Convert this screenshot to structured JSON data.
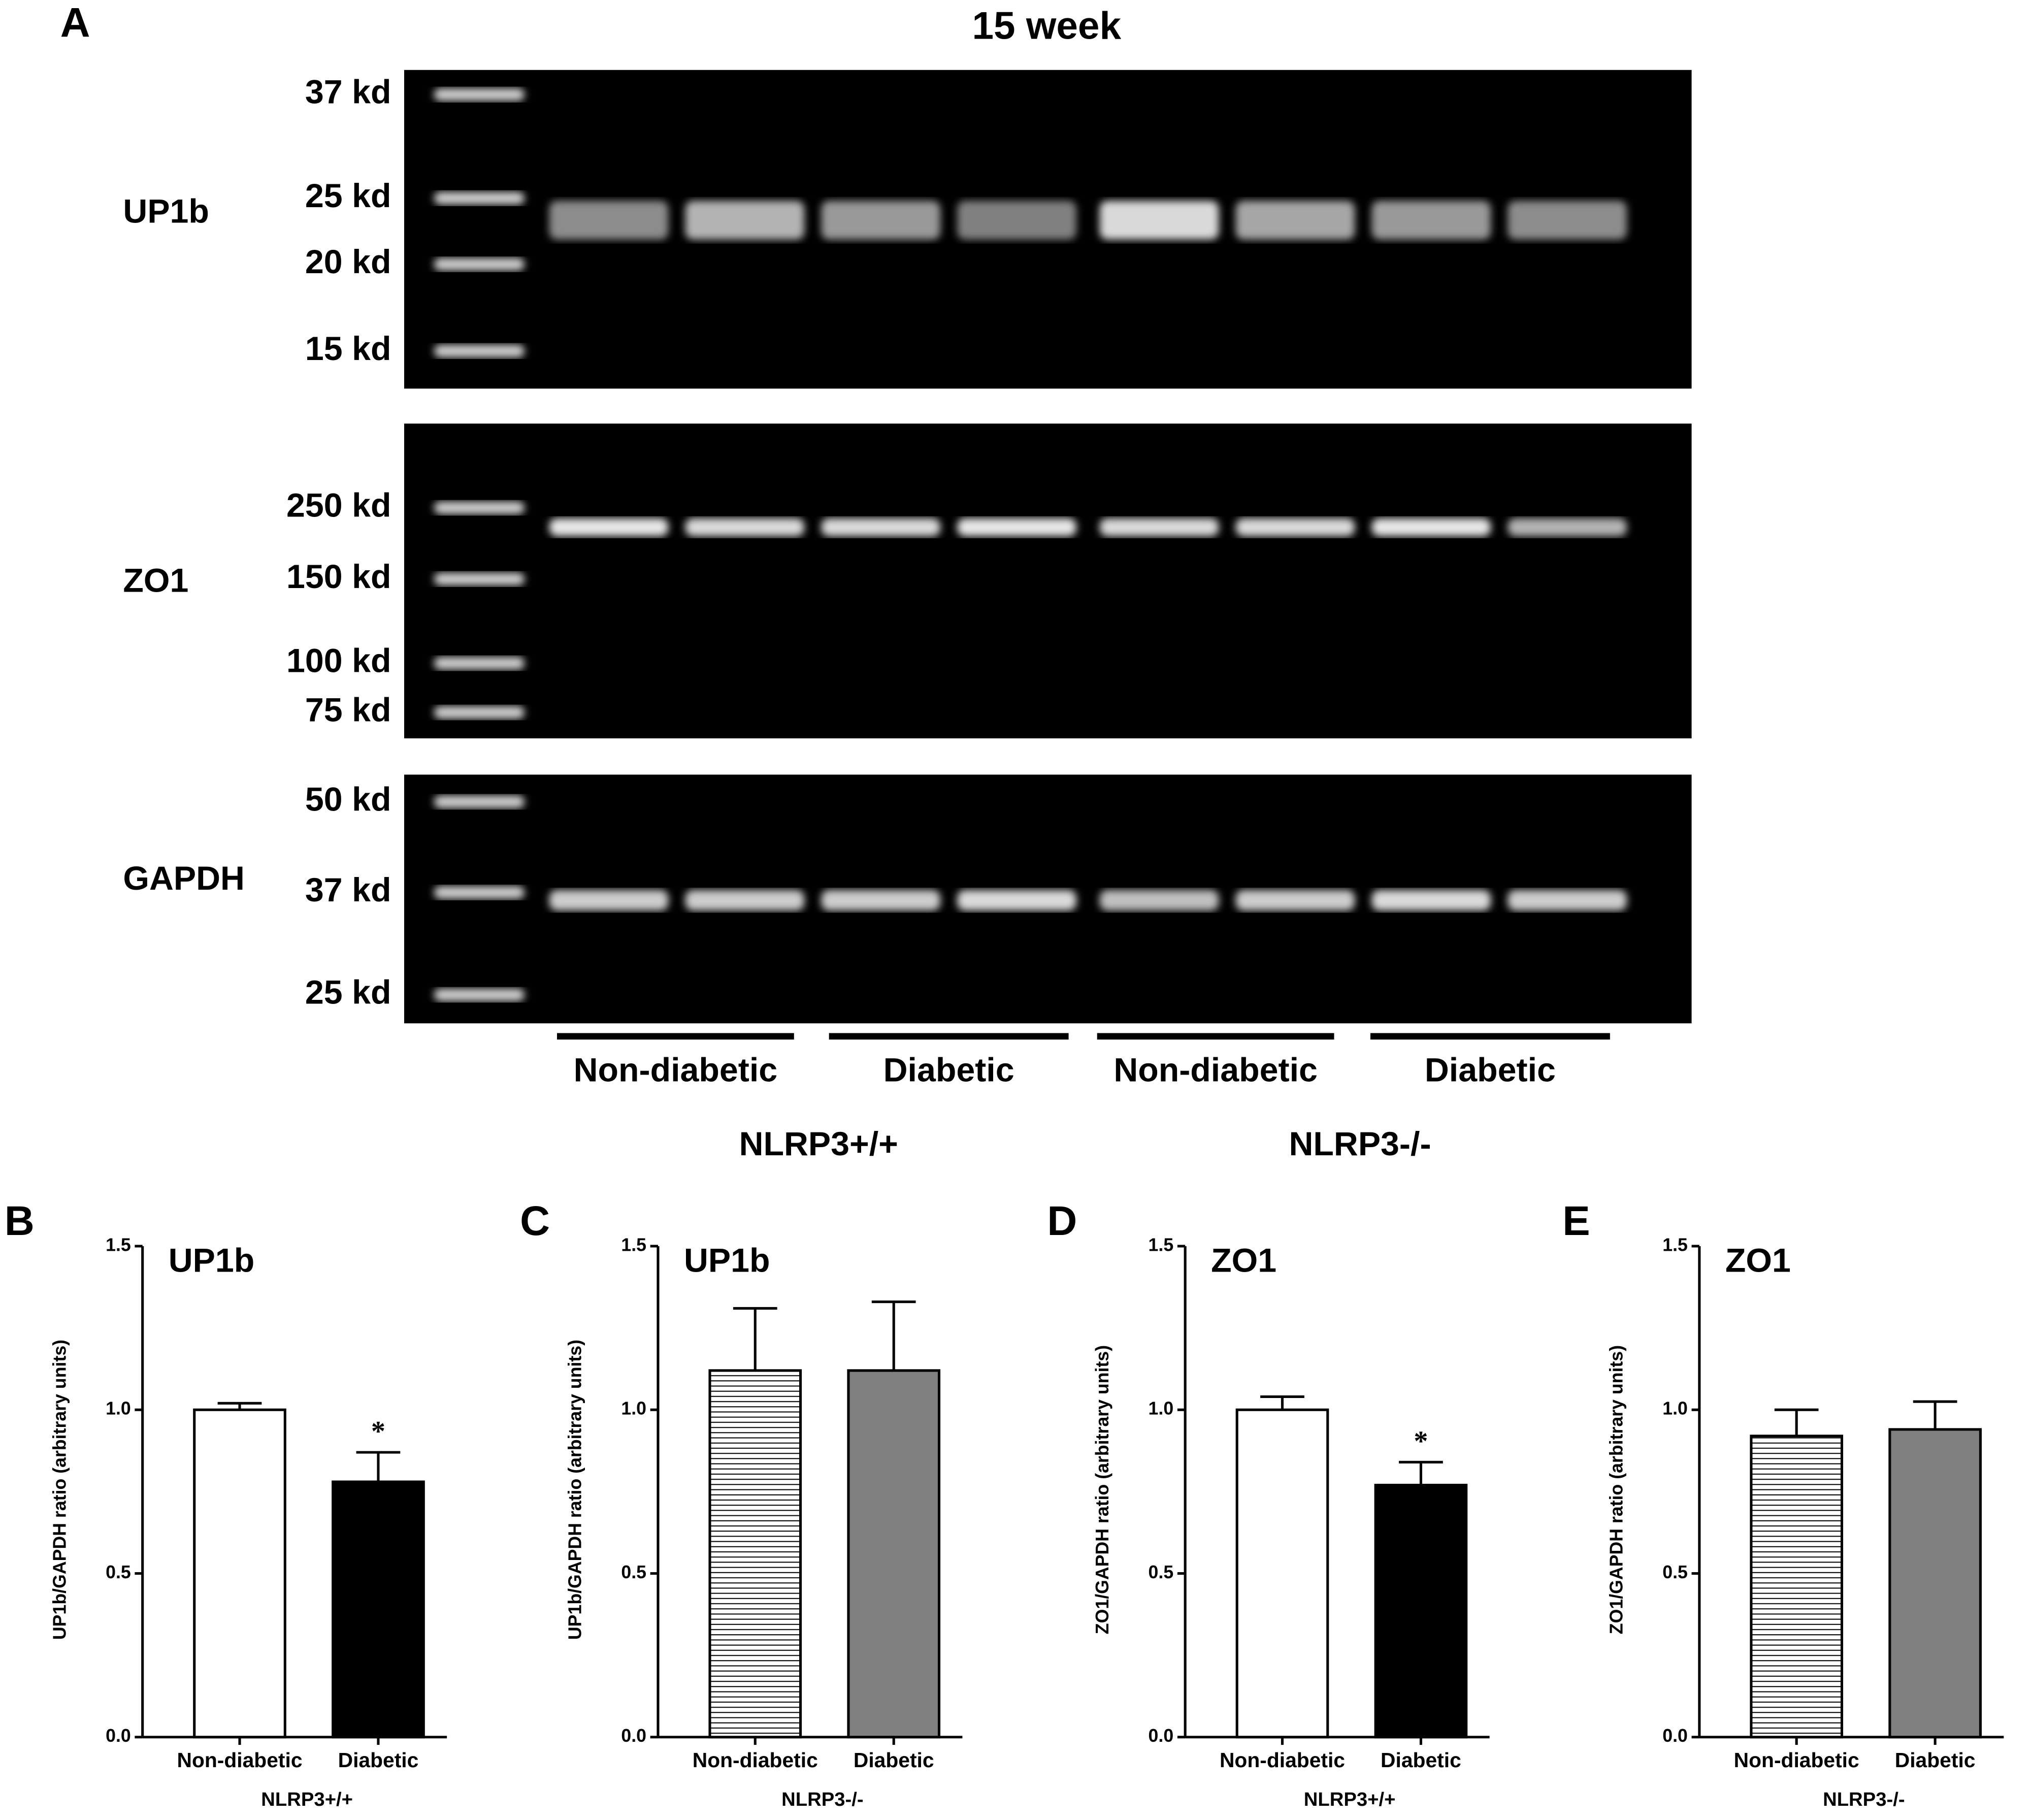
{
  "panel_a": {
    "letter": "A",
    "title": "15 week",
    "blots": [
      {
        "label": "UP1b",
        "markers": [
          "37 kd",
          "25 kd",
          "20 kd",
          "15 kd"
        ]
      },
      {
        "label": "ZO1",
        "markers": [
          "250 kd",
          "150 kd",
          "100 kd",
          "75 kd"
        ]
      },
      {
        "label": "GAPDH",
        "markers": [
          "50 kd",
          "37 kd",
          "25 kd"
        ]
      }
    ],
    "groups": [
      "Non-diabetic",
      "Diabetic",
      "Non-diabetic",
      "Diabetic"
    ],
    "genotypes": [
      "NLRP3+/+",
      "NLRP3-/-"
    ]
  },
  "chart_data": [
    {
      "type": "bar",
      "letter": "B",
      "title": "UP1b",
      "ylabel": "UP1b/GAPDH ratio (arbitrary units)",
      "xlabel": "NLRP3+/+",
      "categories": [
        "Non-diabetic",
        "Diabetic"
      ],
      "values": [
        1.0,
        0.78
      ],
      "errors": [
        0.02,
        0.09
      ],
      "colors": [
        "#ffffff",
        "#000000"
      ],
      "hatch": [
        false,
        false
      ],
      "markers": [
        null,
        "*"
      ],
      "ylim": [
        0,
        1.5
      ],
      "yticks": [
        {
          "value": 0,
          "label": "0.0"
        },
        {
          "value": 0.5,
          "label": "0.5"
        },
        {
          "value": 1,
          "label": "1.0"
        },
        {
          "value": 1.5,
          "label": "1.5"
        }
      ]
    },
    {
      "type": "bar",
      "letter": "C",
      "title": "UP1b",
      "ylabel": "UP1b/GAPDH ratio (arbitrary units)",
      "xlabel": "NLRP3-/-",
      "categories": [
        "Non-diabetic",
        "Diabetic"
      ],
      "values": [
        1.12,
        1.12
      ],
      "errors": [
        0.19,
        0.21
      ],
      "colors": [
        "#ffffff",
        "#808080"
      ],
      "hatch": [
        true,
        false
      ],
      "markers": [
        null,
        null
      ],
      "ylim": [
        0,
        1.5
      ],
      "yticks": [
        {
          "value": 0,
          "label": "0.0"
        },
        {
          "value": 0.5,
          "label": "0.5"
        },
        {
          "value": 1,
          "label": "1.0"
        },
        {
          "value": 1.5,
          "label": "1.5"
        }
      ]
    },
    {
      "type": "bar",
      "letter": "D",
      "title": "ZO1",
      "ylabel": "ZO1/GAPDH ratio (arbitrary units)",
      "xlabel": "NLRP3+/+",
      "categories": [
        "Non-diabetic",
        "Diabetic"
      ],
      "values": [
        1.0,
        0.77
      ],
      "errors": [
        0.04,
        0.07
      ],
      "colors": [
        "#ffffff",
        "#000000"
      ],
      "hatch": [
        false,
        false
      ],
      "markers": [
        null,
        "*"
      ],
      "ylim": [
        0,
        1.5
      ],
      "yticks": [
        {
          "value": 0,
          "label": "0.0"
        },
        {
          "value": 0.5,
          "label": "0.5"
        },
        {
          "value": 1,
          "label": "1.0"
        },
        {
          "value": 1.5,
          "label": "1.5"
        }
      ]
    },
    {
      "type": "bar",
      "letter": "E",
      "title": "ZO1",
      "ylabel": "ZO1/GAPDH ratio (arbitrary units)",
      "xlabel": "NLRP3-/-",
      "categories": [
        "Non-diabetic",
        "Diabetic"
      ],
      "values": [
        0.92,
        0.94
      ],
      "errors": [
        0.08,
        0.085
      ],
      "colors": [
        "#ffffff",
        "#808080"
      ],
      "hatch": [
        true,
        false
      ],
      "markers": [
        null,
        null
      ],
      "ylim": [
        0,
        1.5
      ],
      "yticks": [
        {
          "value": 0,
          "label": "0.0"
        },
        {
          "value": 0.5,
          "label": "0.5"
        },
        {
          "value": 1,
          "label": "1.0"
        },
        {
          "value": 1.5,
          "label": "1.5"
        }
      ]
    }
  ]
}
